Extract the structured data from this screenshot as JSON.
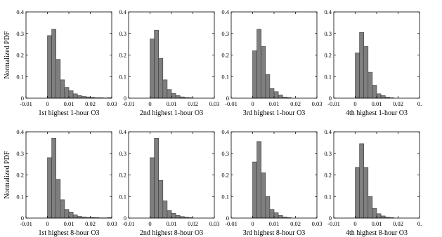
{
  "figure": {
    "ylabel": "Normalized PDF"
  },
  "chart_data": [
    {
      "type": "bar",
      "title": "",
      "xlabel": "1st highest 1-hour O3",
      "ylabel": "Normalized PDF",
      "xlim": [
        -0.01,
        0.03
      ],
      "ylim": [
        0,
        0.4
      ],
      "xticks": [
        "-0.01",
        "0",
        "0.01",
        "0.02",
        "0.03"
      ],
      "yticks": [
        "0",
        "0.1",
        "0.2",
        "0.3",
        "0.4"
      ],
      "bin_width": 0.002,
      "bins_start": [
        0,
        0.002,
        0.004,
        0.006,
        0.008,
        0.01,
        0.012,
        0.014,
        0.016,
        0.018,
        0.02,
        0.022,
        0.024,
        0.026,
        0.028
      ],
      "values": [
        0.29,
        0.32,
        0.18,
        0.085,
        0.05,
        0.035,
        0.02,
        0.012,
        0.008,
        0.006,
        0.004,
        0.002,
        0.002,
        0.001,
        0.002
      ]
    },
    {
      "type": "bar",
      "title": "",
      "xlabel": "2nd highest 1-hour O3",
      "ylabel": "",
      "xlim": [
        -0.01,
        0.03
      ],
      "ylim": [
        0,
        0.4
      ],
      "xticks": [
        "-0.01",
        "0",
        "0.01",
        "0.02",
        "0.03"
      ],
      "yticks": [
        "0",
        "0.1",
        "0.2",
        "0.3",
        "0.4"
      ],
      "bin_width": 0.002,
      "bins_start": [
        0,
        0.002,
        0.004,
        0.006,
        0.008,
        0.01,
        0.012,
        0.014,
        0.016,
        0.018
      ],
      "values": [
        0.275,
        0.315,
        0.185,
        0.085,
        0.04,
        0.022,
        0.012,
        0.006,
        0.003,
        0.002
      ]
    },
    {
      "type": "bar",
      "title": "",
      "xlabel": "3rd highest 1-hour O3",
      "ylabel": "",
      "xlim": [
        -0.01,
        0.03
      ],
      "ylim": [
        0,
        0.4
      ],
      "xticks": [
        "-0.01",
        "0",
        "0.01",
        "0.02",
        "0.03"
      ],
      "yticks": [
        "0",
        "0.1",
        "0.2",
        "0.3",
        "0.4"
      ],
      "bin_width": 0.002,
      "bins_start": [
        0,
        0.002,
        0.004,
        0.006,
        0.008,
        0.01,
        0.012,
        0.014,
        0.016
      ],
      "values": [
        0.22,
        0.32,
        0.24,
        0.11,
        0.045,
        0.03,
        0.015,
        0.005,
        0.003
      ]
    },
    {
      "type": "bar",
      "title": "",
      "xlabel": "4th highest 1-hour O3",
      "ylabel": "",
      "xlim": [
        -0.01,
        0.03
      ],
      "ylim": [
        0,
        0.4
      ],
      "xticks": [
        "-0.01",
        "0",
        "0.01",
        "0.02",
        "0."
      ],
      "yticks": [
        "0",
        "0.1",
        "0.2",
        "0.3",
        "0.4"
      ],
      "bin_width": 0.002,
      "bins_start": [
        0,
        0.002,
        0.004,
        0.006,
        0.008,
        0.01,
        0.012,
        0.014,
        0.016
      ],
      "values": [
        0.21,
        0.305,
        0.24,
        0.12,
        0.06,
        0.02,
        0.012,
        0.005,
        0.002
      ]
    },
    {
      "type": "bar",
      "title": "",
      "xlabel": "1st highest 8-hour O3",
      "ylabel": "Normalized PDF",
      "xlim": [
        -0.01,
        0.03
      ],
      "ylim": [
        0,
        0.4
      ],
      "xticks": [
        "-0.01",
        "0",
        "0.01",
        "0.02",
        "0.03"
      ],
      "yticks": [
        "0",
        "0.1",
        "0.2",
        "0.3",
        "0.4"
      ],
      "bin_width": 0.002,
      "bins_start": [
        0,
        0.002,
        0.004,
        0.006,
        0.008,
        0.01,
        0.012,
        0.014,
        0.016,
        0.018,
        0.02,
        0.022,
        0.024,
        0.026,
        0.028
      ],
      "values": [
        0.28,
        0.37,
        0.18,
        0.085,
        0.04,
        0.028,
        0.015,
        0.008,
        0.005,
        0.003,
        0.003,
        0.002,
        0.001,
        0.001,
        0.002
      ]
    },
    {
      "type": "bar",
      "title": "",
      "xlabel": "2nd highest 8-hour O3",
      "ylabel": "",
      "xlim": [
        -0.01,
        0.03
      ],
      "ylim": [
        0,
        0.4
      ],
      "xticks": [
        "-0.01",
        "0",
        "0.01",
        "0.02",
        "0.03"
      ],
      "yticks": [
        "0",
        "0.1",
        "0.2",
        "0.3",
        "0.4"
      ],
      "bin_width": 0.002,
      "bins_start": [
        0,
        0.002,
        0.004,
        0.006,
        0.008,
        0.01,
        0.012,
        0.014,
        0.016,
        0.018
      ],
      "values": [
        0.28,
        0.37,
        0.175,
        0.08,
        0.035,
        0.022,
        0.012,
        0.007,
        0.004,
        0.002
      ]
    },
    {
      "type": "bar",
      "title": "",
      "xlabel": "3rd highest 8-hour O3",
      "ylabel": "",
      "xlim": [
        -0.01,
        0.03
      ],
      "ylim": [
        0,
        0.4
      ],
      "xticks": [
        "-0.01",
        "0",
        "0.01",
        "0.02",
        "0.03"
      ],
      "yticks": [
        "0",
        "0.1",
        "0.2",
        "0.3",
        "0.4"
      ],
      "bin_width": 0.002,
      "bins_start": [
        0,
        0.002,
        0.004,
        0.006,
        0.008,
        0.01,
        0.012,
        0.014,
        0.016
      ],
      "values": [
        0.26,
        0.355,
        0.21,
        0.1,
        0.04,
        0.025,
        0.012,
        0.005,
        0.002
      ]
    },
    {
      "type": "bar",
      "title": "",
      "xlabel": "4th highest 8-hour O3",
      "ylabel": "",
      "xlim": [
        -0.01,
        0.03
      ],
      "ylim": [
        0,
        0.4
      ],
      "xticks": [
        "-0.01",
        "0",
        "0.01",
        "0.02",
        "0."
      ],
      "yticks": [
        "0",
        "0.1",
        "0.2",
        "0.3",
        "0.4"
      ],
      "bin_width": 0.002,
      "bins_start": [
        0,
        0.002,
        0.004,
        0.006,
        0.008,
        0.01,
        0.012,
        0.014,
        0.016
      ],
      "values": [
        0.235,
        0.345,
        0.235,
        0.1,
        0.045,
        0.02,
        0.01,
        0.004,
        0.002
      ]
    }
  ],
  "colors": {
    "bar_fill": "#7f7f7f",
    "bar_stroke": "#3a3a3a",
    "axis": "#000000"
  }
}
